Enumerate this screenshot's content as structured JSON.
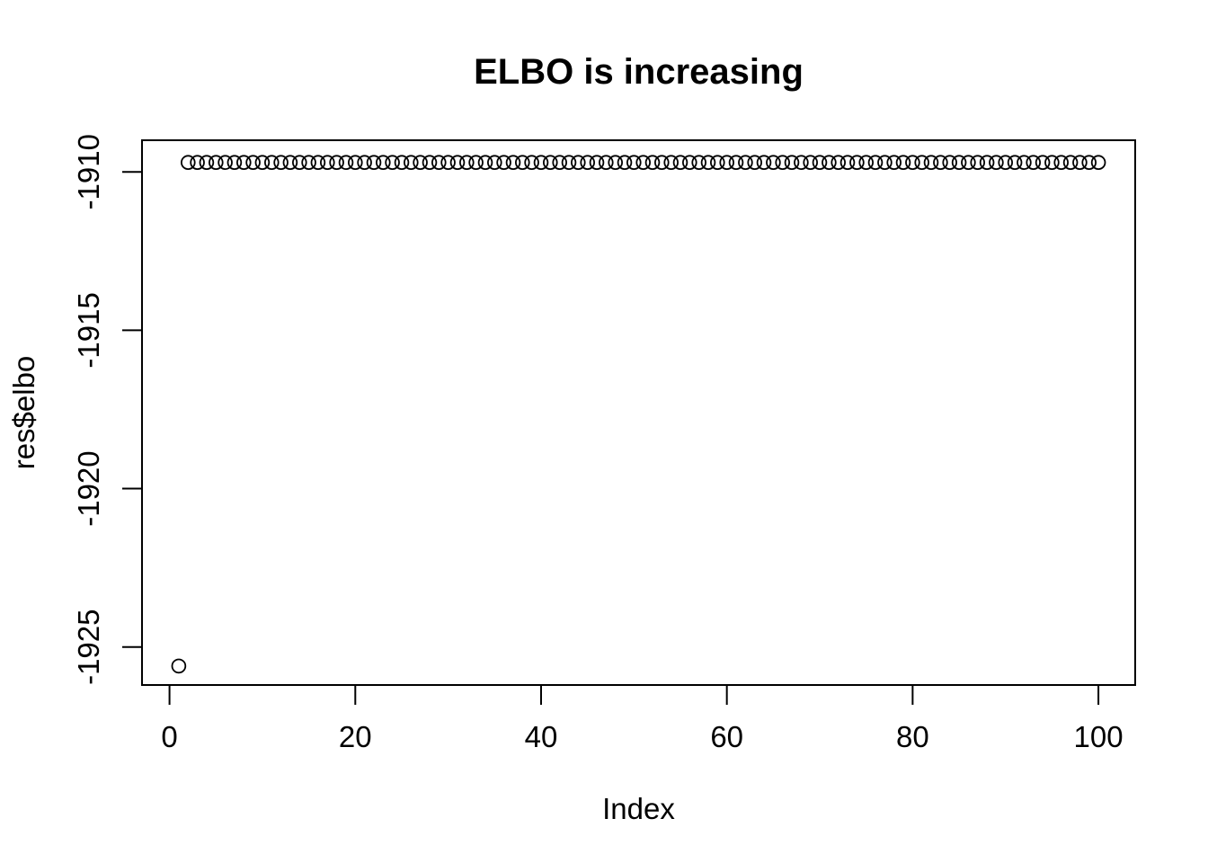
{
  "page": {
    "background": "#ffffff",
    "foreground": "#000000"
  },
  "chart_data": {
    "type": "scatter",
    "title": "ELBO is increasing",
    "xlabel": "Index",
    "ylabel": "res$elbo",
    "legend": "none",
    "grid": false,
    "marker": "open-circle",
    "marker_color": "#000000",
    "x_ticks": [
      0,
      20,
      40,
      60,
      80,
      100
    ],
    "y_ticks": [
      -1910,
      -1915,
      -1920,
      -1925
    ],
    "xlim": [
      -2.96,
      103.96
    ],
    "ylim": [
      -1926.2,
      -1909.0
    ],
    "x": [
      1,
      2,
      3,
      4,
      5,
      6,
      7,
      8,
      9,
      10,
      11,
      12,
      13,
      14,
      15,
      16,
      17,
      18,
      19,
      20,
      21,
      22,
      23,
      24,
      25,
      26,
      27,
      28,
      29,
      30,
      31,
      32,
      33,
      34,
      35,
      36,
      37,
      38,
      39,
      40,
      41,
      42,
      43,
      44,
      45,
      46,
      47,
      48,
      49,
      50,
      51,
      52,
      53,
      54,
      55,
      56,
      57,
      58,
      59,
      60,
      61,
      62,
      63,
      64,
      65,
      66,
      67,
      68,
      69,
      70,
      71,
      72,
      73,
      74,
      75,
      76,
      77,
      78,
      79,
      80,
      81,
      82,
      83,
      84,
      85,
      86,
      87,
      88,
      89,
      90,
      91,
      92,
      93,
      94,
      95,
      96,
      97,
      98,
      99,
      100
    ],
    "y": [
      -1925.6,
      -1909.7,
      -1909.7,
      -1909.7,
      -1909.7,
      -1909.7,
      -1909.7,
      -1909.7,
      -1909.7,
      -1909.7,
      -1909.7,
      -1909.7,
      -1909.7,
      -1909.7,
      -1909.7,
      -1909.7,
      -1909.7,
      -1909.7,
      -1909.7,
      -1909.7,
      -1909.7,
      -1909.7,
      -1909.7,
      -1909.7,
      -1909.7,
      -1909.7,
      -1909.7,
      -1909.7,
      -1909.7,
      -1909.7,
      -1909.7,
      -1909.7,
      -1909.7,
      -1909.7,
      -1909.7,
      -1909.7,
      -1909.7,
      -1909.7,
      -1909.7,
      -1909.7,
      -1909.7,
      -1909.7,
      -1909.7,
      -1909.7,
      -1909.7,
      -1909.7,
      -1909.7,
      -1909.7,
      -1909.7,
      -1909.7,
      -1909.7,
      -1909.7,
      -1909.7,
      -1909.7,
      -1909.7,
      -1909.7,
      -1909.7,
      -1909.7,
      -1909.7,
      -1909.7,
      -1909.7,
      -1909.7,
      -1909.7,
      -1909.7,
      -1909.7,
      -1909.7,
      -1909.7,
      -1909.7,
      -1909.7,
      -1909.7,
      -1909.7,
      -1909.7,
      -1909.7,
      -1909.7,
      -1909.7,
      -1909.7,
      -1909.7,
      -1909.7,
      -1909.7,
      -1909.7,
      -1909.7,
      -1909.7,
      -1909.7,
      -1909.7,
      -1909.7,
      -1909.7,
      -1909.7,
      -1909.7,
      -1909.7,
      -1909.7,
      -1909.7,
      -1909.7,
      -1909.7,
      -1909.7,
      -1909.7,
      -1909.7,
      -1909.7,
      -1909.7,
      -1909.7,
      -1909.7
    ]
  }
}
